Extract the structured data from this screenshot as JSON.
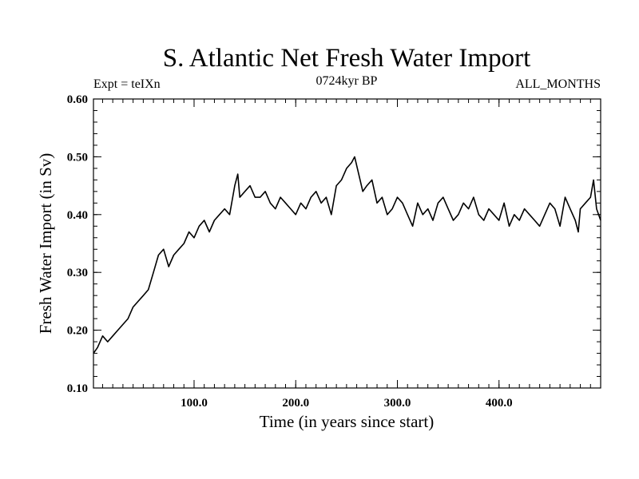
{
  "chart_data": {
    "type": "line",
    "title": "S. Atlantic Net Fresh Water Import",
    "subtitle_left": "Expt = teIXn",
    "subtitle_center": "0724kyr BP",
    "subtitle_right": "ALL_MONTHS",
    "xlabel": "Time (in years since start)",
    "ylabel": "Fresh Water Import (in Sv)",
    "xlim": [
      1,
      500
    ],
    "ylim": [
      0.1,
      0.6
    ],
    "x_ticks": [
      100,
      200,
      300,
      400
    ],
    "x_tick_labels": [
      "100.0",
      "200.0",
      "300.0",
      "400.0"
    ],
    "y_ticks": [
      0.1,
      0.2,
      0.3,
      0.4,
      0.5,
      0.6
    ],
    "y_tick_labels": [
      "0.10",
      "0.20",
      "0.30",
      "0.40",
      "0.50",
      "0.60"
    ],
    "grid": false,
    "series": [
      {
        "x": [
          1,
          5,
          10,
          15,
          20,
          25,
          30,
          35,
          40,
          45,
          50,
          55,
          60,
          65,
          70,
          75,
          80,
          85,
          90,
          95,
          100,
          105,
          110,
          115,
          120,
          125,
          130,
          135,
          140,
          143,
          145,
          150,
          155,
          160,
          165,
          170,
          175,
          180,
          185,
          190,
          195,
          200,
          205,
          210,
          215,
          220,
          225,
          230,
          235,
          240,
          245,
          250,
          255,
          258,
          262,
          266,
          270,
          275,
          280,
          285,
          290,
          295,
          300,
          305,
          310,
          315,
          320,
          325,
          330,
          335,
          340,
          345,
          350,
          355,
          360,
          365,
          370,
          375,
          380,
          385,
          390,
          395,
          400,
          405,
          410,
          415,
          420,
          425,
          430,
          435,
          440,
          445,
          450,
          455,
          460,
          465,
          470,
          475,
          478,
          480,
          485,
          490,
          493,
          496,
          500
        ],
        "y": [
          0.16,
          0.17,
          0.19,
          0.18,
          0.19,
          0.2,
          0.21,
          0.22,
          0.24,
          0.25,
          0.26,
          0.27,
          0.3,
          0.33,
          0.34,
          0.31,
          0.33,
          0.34,
          0.35,
          0.37,
          0.36,
          0.38,
          0.39,
          0.37,
          0.39,
          0.4,
          0.41,
          0.4,
          0.45,
          0.47,
          0.43,
          0.44,
          0.45,
          0.43,
          0.43,
          0.44,
          0.42,
          0.41,
          0.43,
          0.42,
          0.41,
          0.4,
          0.42,
          0.41,
          0.43,
          0.44,
          0.42,
          0.43,
          0.4,
          0.45,
          0.46,
          0.48,
          0.49,
          0.5,
          0.47,
          0.44,
          0.45,
          0.46,
          0.42,
          0.43,
          0.4,
          0.41,
          0.43,
          0.42,
          0.4,
          0.38,
          0.42,
          0.4,
          0.41,
          0.39,
          0.42,
          0.43,
          0.41,
          0.39,
          0.4,
          0.42,
          0.41,
          0.43,
          0.4,
          0.39,
          0.41,
          0.4,
          0.39,
          0.42,
          0.38,
          0.4,
          0.39,
          0.41,
          0.4,
          0.39,
          0.38,
          0.4,
          0.42,
          0.41,
          0.38,
          0.43,
          0.41,
          0.39,
          0.37,
          0.41,
          0.42,
          0.43,
          0.46,
          0.41,
          0.39
        ]
      }
    ]
  }
}
